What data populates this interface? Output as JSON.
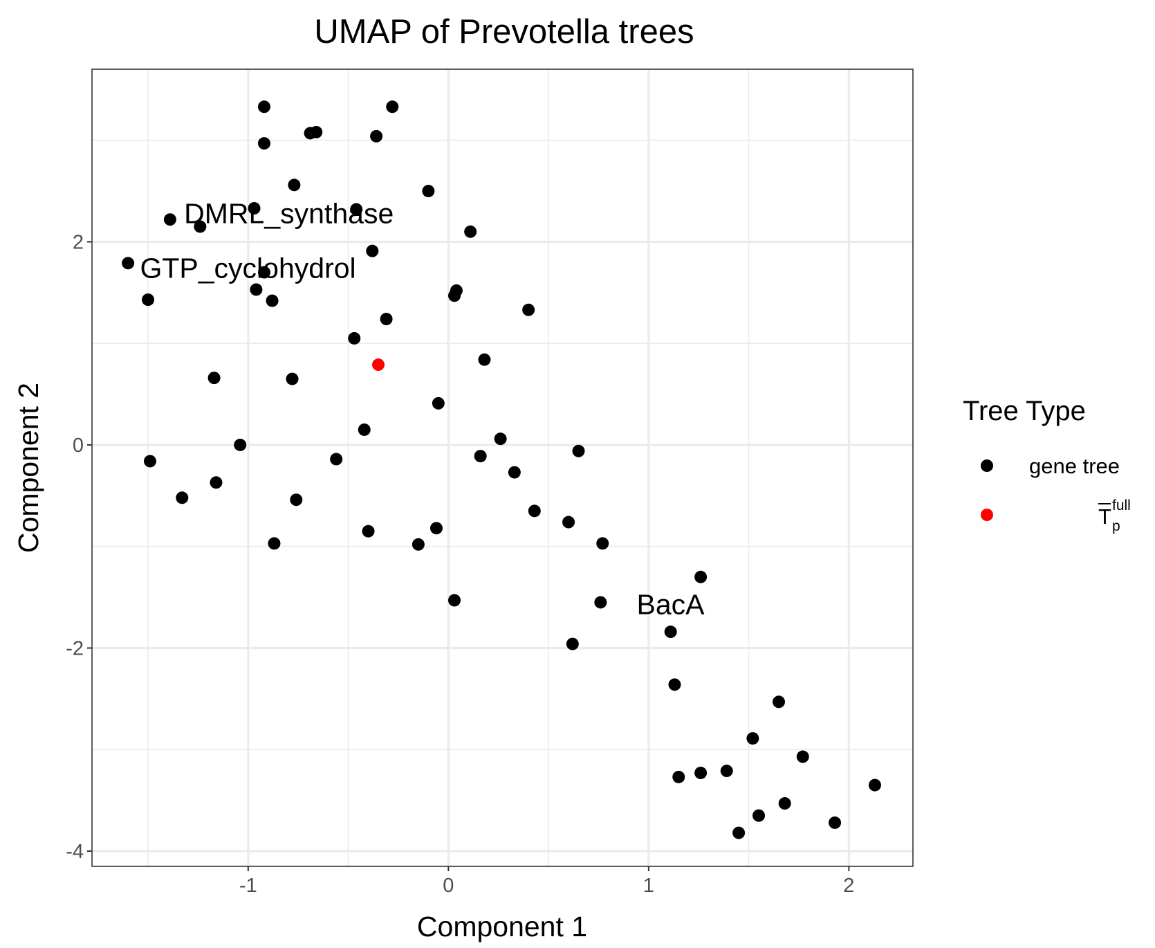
{
  "chart_data": {
    "type": "scatter",
    "title": "UMAP of Prevotella trees",
    "xlabel": "Component 1",
    "ylabel": "Component 2",
    "xlim": [
      -1.78,
      2.32
    ],
    "ylim": [
      -4.15,
      3.7
    ],
    "x_ticks": [
      -1,
      0,
      1,
      2
    ],
    "x_tick_labels": [
      "-1",
      "0",
      "1",
      "2"
    ],
    "y_ticks": [
      -4,
      -2,
      0,
      2
    ],
    "y_tick_labels": [
      "-4",
      "-2",
      "0",
      "2"
    ],
    "x_minor": [
      -1.5,
      -0.5,
      0.5,
      1.5
    ],
    "y_minor": [
      -3,
      -1,
      1,
      3
    ],
    "grid": true,
    "legend": {
      "title": "Tree Type",
      "placement": "right",
      "entries": [
        {
          "label": "gene tree",
          "color": "#000000"
        },
        {
          "label_base": "T",
          "label_sub": "p",
          "label_sup": "full",
          "color": "#ff0000"
        }
      ]
    },
    "series": [
      {
        "color": "#000000",
        "points": [
          [
            -0.92,
            3.33
          ],
          [
            -0.28,
            3.33
          ],
          [
            -0.92,
            2.97
          ],
          [
            -0.69,
            3.07
          ],
          [
            -0.66,
            3.08
          ],
          [
            -0.36,
            3.04
          ],
          [
            -0.77,
            2.56
          ],
          [
            -0.1,
            2.5
          ],
          [
            -0.97,
            2.33
          ],
          [
            -0.46,
            2.32
          ],
          [
            -1.39,
            2.22
          ],
          [
            -1.24,
            2.15
          ],
          [
            0.11,
            2.1
          ],
          [
            -0.38,
            1.91
          ],
          [
            -1.6,
            1.79
          ],
          [
            -0.92,
            1.7
          ],
          [
            -0.96,
            1.53
          ],
          [
            0.04,
            1.52
          ],
          [
            0.03,
            1.47
          ],
          [
            -1.5,
            1.43
          ],
          [
            -0.88,
            1.42
          ],
          [
            0.4,
            1.33
          ],
          [
            -0.31,
            1.24
          ],
          [
            -0.47,
            1.05
          ],
          [
            0.18,
            0.84
          ],
          [
            -1.17,
            0.66
          ],
          [
            -0.78,
            0.65
          ],
          [
            -0.05,
            0.41
          ],
          [
            -0.42,
            0.15
          ],
          [
            0.26,
            0.06
          ],
          [
            -1.04,
            0.0
          ],
          [
            0.65,
            -0.06
          ],
          [
            0.16,
            -0.11
          ],
          [
            -0.56,
            -0.14
          ],
          [
            -1.49,
            -0.16
          ],
          [
            0.33,
            -0.27
          ],
          [
            -1.16,
            -0.37
          ],
          [
            -1.33,
            -0.52
          ],
          [
            -0.76,
            -0.54
          ],
          [
            0.43,
            -0.65
          ],
          [
            0.6,
            -0.76
          ],
          [
            -0.4,
            -0.85
          ],
          [
            -0.06,
            -0.82
          ],
          [
            -0.87,
            -0.97
          ],
          [
            -0.15,
            -0.98
          ],
          [
            0.77,
            -0.97
          ],
          [
            1.26,
            -1.3
          ],
          [
            0.03,
            -1.53
          ],
          [
            0.76,
            -1.55
          ],
          [
            1.11,
            -1.84
          ],
          [
            0.62,
            -1.96
          ],
          [
            1.13,
            -2.36
          ],
          [
            1.65,
            -2.53
          ],
          [
            1.52,
            -2.89
          ],
          [
            1.77,
            -3.07
          ],
          [
            1.39,
            -3.21
          ],
          [
            1.26,
            -3.23
          ],
          [
            1.15,
            -3.27
          ],
          [
            2.13,
            -3.35
          ],
          [
            1.68,
            -3.53
          ],
          [
            1.55,
            -3.65
          ],
          [
            1.93,
            -3.72
          ],
          [
            1.45,
            -3.82
          ]
        ]
      },
      {
        "color": "#ff0000",
        "points": [
          [
            -0.35,
            0.79
          ]
        ]
      }
    ],
    "annotations": [
      {
        "text": "DMRL_synthase",
        "x": -1.32,
        "y": 2.28
      },
      {
        "text": "GTP_cyclohydrol",
        "x": -1.54,
        "y": 1.74
      },
      {
        "text": "BacA",
        "x": 0.94,
        "y": -1.57
      }
    ]
  }
}
